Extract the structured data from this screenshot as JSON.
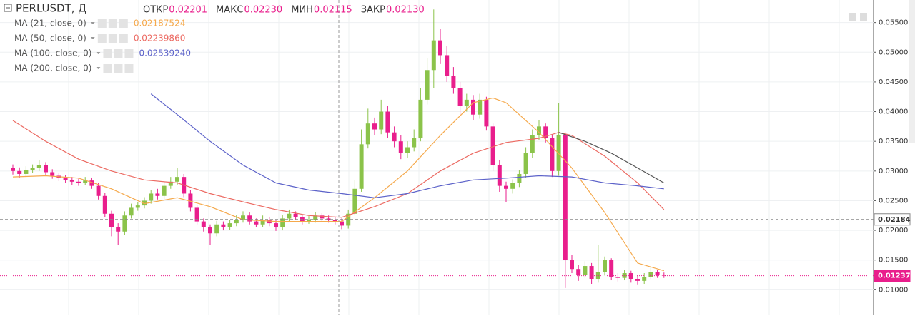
{
  "chart_data": {
    "type": "candlestick",
    "title": "PERLUSDT, Д",
    "stats": [
      {
        "name": "ОТКР",
        "value": {
          "value": 0.02201,
          "label": "0.02201"
        }
      },
      {
        "name": "МАКС",
        "value": {
          "value": 0.0223,
          "label": "0.02230"
        }
      },
      {
        "name": "МИН",
        "value": {
          "value": 0.02115,
          "label": "0.02115"
        }
      },
      {
        "name": "ЗАКР",
        "value": {
          "value": 0.0213,
          "label": "0.02130"
        }
      }
    ],
    "up_color": "#8bc34a",
    "down_color": "#e91e8c",
    "ylim": [
      0.0074,
      0.0588
    ],
    "yticks": [
      {
        "value": 0.01,
        "label": "0.01000"
      },
      {
        "value": 0.015,
        "label": "0.01500"
      },
      {
        "value": 0.02,
        "label": "0.02000"
      },
      {
        "value": 0.025,
        "label": "0.02500"
      },
      {
        "value": 0.03,
        "label": "0.03000"
      },
      {
        "value": 0.035,
        "label": "0.03500"
      },
      {
        "value": 0.04,
        "label": "0.04000"
      },
      {
        "value": 0.045,
        "label": "0.04500"
      },
      {
        "value": 0.05,
        "label": "0.05000"
      },
      {
        "value": 0.055,
        "label": "0.05500"
      }
    ],
    "grid": true,
    "open": [
      0.0305,
      0.03,
      0.0295,
      0.0302,
      0.0305,
      0.031,
      0.0298,
      0.0292,
      0.0288,
      0.0285,
      0.0282,
      0.028,
      0.0284,
      0.0275,
      0.0258,
      0.0228,
      0.0205,
      0.0198,
      0.0225,
      0.0238,
      0.0242,
      0.025,
      0.0262,
      0.0258,
      0.0275,
      0.0282,
      0.029,
      0.0262,
      0.0238,
      0.0215,
      0.0205,
      0.0195,
      0.021,
      0.0205,
      0.0212,
      0.0218,
      0.0225,
      0.0215,
      0.021,
      0.0218,
      0.0212,
      0.0205,
      0.022,
      0.0228,
      0.0222,
      0.0215,
      0.0218,
      0.0225,
      0.022,
      0.0218,
      0.0215,
      0.0208,
      0.0228,
      0.027,
      0.0345,
      0.038,
      0.037,
      0.04,
      0.0365,
      0.035,
      0.033,
      0.034,
      0.0355,
      0.042,
      0.047,
      0.052,
      0.0495,
      0.046,
      0.044,
      0.041,
      0.042,
      0.0395,
      0.042,
      0.0375,
      0.031,
      0.0275,
      0.027,
      0.028,
      0.0295,
      0.033,
      0.036,
      0.0375,
      0.0355,
      0.03,
      0.036,
      0.015,
      0.0135,
      0.0125,
      0.014,
      0.0118,
      0.013,
      0.015,
      0.0122,
      0.012,
      0.0128,
      0.0118,
      0.0115,
      0.0122,
      0.013,
      0.0125
    ],
    "high": [
      0.0311,
      0.0306,
      0.0308,
      0.0311,
      0.0318,
      0.0315,
      0.0303,
      0.0297,
      0.0293,
      0.029,
      0.0287,
      0.029,
      0.0289,
      0.028,
      0.0263,
      0.0233,
      0.0212,
      0.0232,
      0.0245,
      0.0248,
      0.0256,
      0.0268,
      0.027,
      0.0282,
      0.029,
      0.0305,
      0.0295,
      0.0268,
      0.0243,
      0.022,
      0.021,
      0.0216,
      0.0215,
      0.0218,
      0.0226,
      0.0232,
      0.023,
      0.022,
      0.0225,
      0.0223,
      0.0218,
      0.0226,
      0.0235,
      0.0232,
      0.0227,
      0.0224,
      0.0231,
      0.0229,
      0.0225,
      0.0223,
      0.022,
      0.0235,
      0.0285,
      0.037,
      0.0405,
      0.039,
      0.042,
      0.041,
      0.0375,
      0.036,
      0.035,
      0.037,
      0.044,
      0.049,
      0.0572,
      0.054,
      0.051,
      0.0475,
      0.045,
      0.043,
      0.0428,
      0.043,
      0.0425,
      0.038,
      0.0318,
      0.0282,
      0.0286,
      0.0302,
      0.034,
      0.037,
      0.0385,
      0.038,
      0.0362,
      0.0415,
      0.0365,
      0.0158,
      0.0142,
      0.0148,
      0.0145,
      0.0175,
      0.0156,
      0.0153,
      0.0128,
      0.0133,
      0.0132,
      0.0124,
      0.0128,
      0.0138,
      0.0134,
      0.0129
    ],
    "low": [
      0.0294,
      0.0289,
      0.029,
      0.0297,
      0.03,
      0.0292,
      0.0287,
      0.0283,
      0.028,
      0.0277,
      0.0275,
      0.0276,
      0.027,
      0.0252,
      0.0222,
      0.019,
      0.0175,
      0.0192,
      0.022,
      0.0233,
      0.0237,
      0.0245,
      0.0252,
      0.0253,
      0.027,
      0.0276,
      0.0256,
      0.0232,
      0.021,
      0.0198,
      0.0175,
      0.019,
      0.02,
      0.0201,
      0.0207,
      0.0213,
      0.021,
      0.0205,
      0.0206,
      0.0207,
      0.0199,
      0.02,
      0.0215,
      0.0217,
      0.021,
      0.0211,
      0.0213,
      0.0215,
      0.0213,
      0.021,
      0.0202,
      0.0203,
      0.0225,
      0.0265,
      0.0338,
      0.036,
      0.0362,
      0.0355,
      0.034,
      0.032,
      0.0322,
      0.0333,
      0.035,
      0.0412,
      0.044,
      0.048,
      0.045,
      0.043,
      0.0395,
      0.04,
      0.0385,
      0.0388,
      0.0368,
      0.03,
      0.0265,
      0.0248,
      0.0262,
      0.0273,
      0.0288,
      0.0322,
      0.0352,
      0.0348,
      0.029,
      0.0292,
      0.0103,
      0.0128,
      0.0115,
      0.012,
      0.011,
      0.0112,
      0.0124,
      0.0116,
      0.0114,
      0.0116,
      0.0112,
      0.0108,
      0.011,
      0.0117,
      0.012,
      0.012
    ],
    "close": [
      0.03,
      0.0295,
      0.0302,
      0.0305,
      0.031,
      0.0298,
      0.0292,
      0.0288,
      0.0285,
      0.0282,
      0.028,
      0.0284,
      0.0275,
      0.0258,
      0.0228,
      0.0205,
      0.0198,
      0.0225,
      0.0238,
      0.0242,
      0.025,
      0.0262,
      0.0258,
      0.0275,
      0.0282,
      0.029,
      0.0262,
      0.0238,
      0.0215,
      0.0205,
      0.0195,
      0.021,
      0.0205,
      0.0212,
      0.0218,
      0.0225,
      0.0215,
      0.021,
      0.0218,
      0.0212,
      0.0205,
      0.022,
      0.0228,
      0.0222,
      0.0215,
      0.0218,
      0.0225,
      0.022,
      0.0218,
      0.0215,
      0.0208,
      0.0228,
      0.027,
      0.0345,
      0.038,
      0.037,
      0.04,
      0.0365,
      0.035,
      0.033,
      0.034,
      0.0355,
      0.042,
      0.047,
      0.052,
      0.0495,
      0.046,
      0.044,
      0.041,
      0.042,
      0.0395,
      0.042,
      0.0375,
      0.031,
      0.0275,
      0.027,
      0.028,
      0.0295,
      0.033,
      0.036,
      0.0375,
      0.0355,
      0.03,
      0.036,
      0.015,
      0.0135,
      0.0125,
      0.014,
      0.0118,
      0.013,
      0.015,
      0.0122,
      0.012,
      0.0128,
      0.0118,
      0.0115,
      0.0122,
      0.013,
      0.0125,
      0.01237
    ],
    "series": [
      {
        "name": "MA (21, close, 0)",
        "color": "#f5a94c",
        "last": {
          "value": 0.02187524,
          "label": "0.02187524"
        },
        "x": [
          0,
          5,
          10,
          15,
          20,
          25,
          30,
          35,
          40,
          45,
          50,
          55,
          60,
          65,
          70,
          73,
          75,
          80,
          85,
          90,
          95,
          99
        ],
        "values": [
          0.029,
          0.0292,
          0.0288,
          0.027,
          0.0245,
          0.0255,
          0.024,
          0.0218,
          0.0215,
          0.0215,
          0.0215,
          0.0255,
          0.03,
          0.036,
          0.0415,
          0.0423,
          0.0415,
          0.0365,
          0.0305,
          0.023,
          0.0145,
          0.0132
        ]
      },
      {
        "name": "MA (50, close, 0)",
        "color": "#ec6a62",
        "last": {
          "value": 0.0223986,
          "label": "0.02239860"
        },
        "x": [
          0,
          5,
          10,
          15,
          20,
          25,
          30,
          35,
          40,
          45,
          50,
          55,
          60,
          65,
          70,
          75,
          80,
          83,
          85,
          90,
          95,
          99
        ],
        "values": [
          0.0385,
          0.035,
          0.032,
          0.03,
          0.0285,
          0.028,
          0.0262,
          0.0248,
          0.0235,
          0.0225,
          0.0222,
          0.024,
          0.0262,
          0.03,
          0.033,
          0.0348,
          0.0355,
          0.0365,
          0.036,
          0.0325,
          0.028,
          0.0235
        ]
      },
      {
        "name": "MA (100, close, 0)",
        "color": "#5c62c9",
        "last": {
          "value": 0.0253924,
          "label": "0.02539240"
        },
        "x": [
          21,
          25,
          30,
          35,
          40,
          45,
          50,
          55,
          60,
          65,
          70,
          75,
          80,
          85,
          90,
          95,
          99
        ],
        "values": [
          0.043,
          0.0395,
          0.035,
          0.031,
          0.028,
          0.0268,
          0.0262,
          0.0255,
          0.0262,
          0.0275,
          0.0285,
          0.0288,
          0.0292,
          0.029,
          0.028,
          0.0275,
          0.027
        ]
      },
      {
        "name": "MA (200, close, 0)",
        "color": "#555555",
        "x": [
          83,
          87,
          91,
          95,
          99
        ],
        "values": [
          0.0365,
          0.035,
          0.033,
          0.0305,
          0.028
        ]
      }
    ],
    "price_lines": [
      {
        "value": 0.02184,
        "label": "0.02184",
        "color": "#888888"
      },
      {
        "value": 0.01237,
        "label": "0.01237",
        "color": "#e91e8c"
      }
    ]
  }
}
